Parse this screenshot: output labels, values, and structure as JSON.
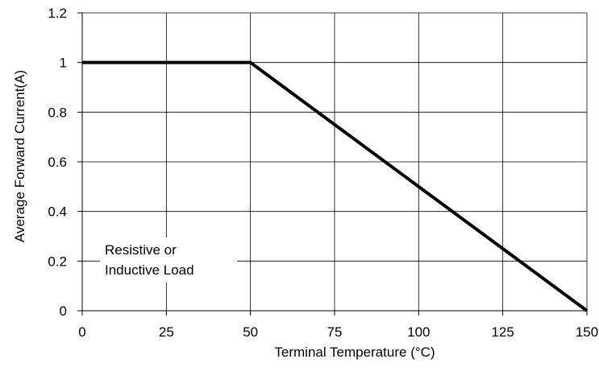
{
  "chart_data": {
    "type": "line",
    "title": "",
    "xlabel": "Terminal Temperature (°C)",
    "ylabel": "Average Forward  Current(A)",
    "xlim": [
      0,
      150
    ],
    "ylim": [
      0,
      1.2
    ],
    "x_ticks": [
      0,
      25,
      50,
      75,
      100,
      125,
      150
    ],
    "y_ticks": [
      0,
      0.2,
      0.4,
      0.6,
      0.8,
      1,
      1.2
    ],
    "x_tick_labels": [
      "0",
      "25",
      "50",
      "75",
      "100",
      "125",
      "150"
    ],
    "y_tick_labels": [
      "0",
      "0.2",
      "0.4",
      "0.6",
      "0.8",
      "1",
      "1.2"
    ],
    "grid": true,
    "legend": "none",
    "series": [
      {
        "x": [
          0,
          50,
          150
        ],
        "y": [
          1,
          1,
          0
        ]
      }
    ],
    "annotation": [
      "Resistive or",
      "Inductive Load"
    ]
  }
}
